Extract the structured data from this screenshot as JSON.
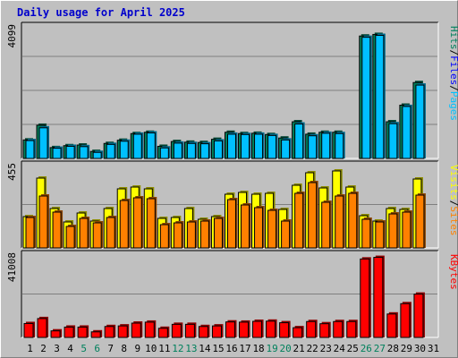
{
  "chart_data": {
    "type": "bar",
    "title": "Daily usage for April 2025",
    "categories": [
      "1",
      "2",
      "3",
      "4",
      "5",
      "6",
      "7",
      "8",
      "9",
      "10",
      "11",
      "12",
      "13",
      "14",
      "15",
      "16",
      "17",
      "18",
      "19",
      "20",
      "21",
      "22",
      "23",
      "24",
      "25",
      "26",
      "27",
      "28",
      "29",
      "30",
      "31"
    ],
    "weekend_days": [
      "5",
      "6",
      "12",
      "13",
      "19",
      "20",
      "26",
      "27"
    ],
    "colors": {
      "background": "#c0c0c0",
      "panel": "#c0c0c0",
      "grid": "#808080",
      "hits": "#00805c",
      "files": "#0000ff",
      "pages": "#00c0ff",
      "visits": "#ffff00",
      "sites": "#ff8000",
      "kbytes": "#ff0000",
      "title": "#0000cc",
      "weekday_label": "#000000",
      "weekend_label": "#00805c"
    },
    "panels": [
      {
        "name": "pages-files-hits",
        "ymax_label": "4099",
        "ymax": 4099,
        "legend": [
          {
            "text": "Pages",
            "color": "#00c0ff"
          },
          {
            "text": "Files",
            "color": "#0000ff"
          },
          {
            "text": "Hits",
            "color": "#00805c"
          }
        ],
        "series": [
          {
            "name": "Hits",
            "color": "#00805c",
            "values": [
              580,
              1040,
              340,
              400,
              420,
              220,
              470,
              570,
              780,
              820,
              380,
              530,
              510,
              500,
              600,
              820,
              780,
              790,
              750,
              640,
              1150,
              760,
              820,
              820,
              0,
              3840,
              3890,
              1150,
              1670,
              2380,
              0
            ]
          },
          {
            "name": "Pages",
            "color": "#00c0ff",
            "values": [
              560,
              960,
              320,
              380,
              370,
              190,
              440,
              540,
              760,
              800,
              330,
              480,
              470,
              460,
              550,
              760,
              750,
              760,
              720,
              580,
              1080,
              710,
              790,
              780,
              0,
              3800,
              3860,
              1090,
              1630,
              2300,
              0
            ]
          }
        ]
      },
      {
        "name": "visits-sites",
        "ymax_label": "455",
        "ymax": 455,
        "legend": [
          {
            "text": "Sites",
            "color": "#ff8000"
          },
          {
            "text": "Visits",
            "color": "#ffff00"
          }
        ],
        "series": [
          {
            "name": "Visits",
            "color": "#ffff00",
            "values": [
              175,
              390,
              220,
              145,
              195,
              150,
              220,
              330,
              340,
              330,
              165,
              170,
              220,
              160,
              175,
              300,
              310,
              300,
              305,
              215,
              350,
              420,
              335,
              430,
              340,
              180,
              150,
              220,
              215,
              385,
              0
            ]
          },
          {
            "name": "Sites",
            "color": "#ff8000",
            "values": [
              170,
              290,
              200,
              120,
              165,
              140,
              170,
              265,
              280,
              275,
              130,
              140,
              145,
              150,
              165,
              270,
              240,
              225,
              210,
              150,
              305,
              365,
              255,
              290,
              305,
              160,
              145,
              190,
              200,
              295,
              0
            ]
          }
        ]
      },
      {
        "name": "kbytes",
        "ymax_label": "41008",
        "ymax": 41008,
        "legend": [
          {
            "text": "KBytes",
            "color": "#ff0000"
          }
        ],
        "series": [
          {
            "name": "KBytes",
            "color": "#ff0000",
            "values": [
              7000,
              9500,
              3300,
              5200,
              5200,
              2800,
              5500,
              5800,
              7200,
              7700,
              4600,
              6600,
              6600,
              5500,
              5800,
              7800,
              7700,
              8100,
              8200,
              7400,
              4900,
              8000,
              6900,
              8000,
              8000,
              39500,
              40300,
              11800,
              17000,
              21800,
              0
            ]
          }
        ]
      }
    ]
  }
}
